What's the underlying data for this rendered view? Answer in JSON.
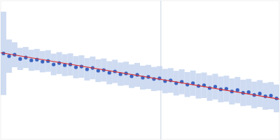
{
  "chart_data": {
    "type": "scatter",
    "xlim": [
      0,
      1
    ],
    "ylim": [
      0,
      1
    ],
    "tick_labels": false,
    "grid": false,
    "vline": 0.575,
    "series": [
      {
        "type": "scatter",
        "color": "#3a64c0",
        "marker": "circle",
        "x": [
          0.01,
          0.03,
          0.05,
          0.07,
          0.09,
          0.11,
          0.13,
          0.15,
          0.17,
          0.19,
          0.21,
          0.23,
          0.25,
          0.27,
          0.29,
          0.31,
          0.33,
          0.35,
          0.37,
          0.39,
          0.41,
          0.43,
          0.45,
          0.47,
          0.49,
          0.51,
          0.53,
          0.55,
          0.57,
          0.59,
          0.61,
          0.63,
          0.65,
          0.67,
          0.69,
          0.71,
          0.73,
          0.75,
          0.77,
          0.79,
          0.81,
          0.83,
          0.85,
          0.87,
          0.89,
          0.91,
          0.93,
          0.95,
          0.97,
          0.99
        ],
        "values": [
          0.62,
          0.6,
          0.61,
          0.58,
          0.59,
          0.57,
          0.575,
          0.56,
          0.565,
          0.54,
          0.55,
          0.535,
          0.54,
          0.52,
          0.525,
          0.505,
          0.515,
          0.495,
          0.5,
          0.48,
          0.49,
          0.47,
          0.475,
          0.455,
          0.465,
          0.445,
          0.45,
          0.435,
          0.44,
          0.42,
          0.425,
          0.405,
          0.415,
          0.395,
          0.405,
          0.385,
          0.39,
          0.37,
          0.38,
          0.36,
          0.365,
          0.345,
          0.355,
          0.335,
          0.34,
          0.32,
          0.33,
          0.31,
          0.315,
          0.295
        ],
        "errors": [
          0.3,
          0.12,
          0.09,
          0.08,
          0.076,
          0.076,
          0.077,
          0.077,
          0.078,
          0.078,
          0.079,
          0.079,
          0.08,
          0.08,
          0.081,
          0.081,
          0.082,
          0.082,
          0.083,
          0.083,
          0.084,
          0.084,
          0.085,
          0.085,
          0.086,
          0.086,
          0.087,
          0.087,
          0.088,
          0.088,
          0.089,
          0.089,
          0.09,
          0.09,
          0.091,
          0.091,
          0.092,
          0.092,
          0.093,
          0.093,
          0.094,
          0.094,
          0.095,
          0.095,
          0.096,
          0.096,
          0.097,
          0.097,
          0.098,
          0.1
        ]
      },
      {
        "type": "line",
        "color": "#e03030",
        "line_style": "solid",
        "x": [
          0,
          1
        ],
        "values": [
          0.625,
          0.29
        ]
      }
    ]
  }
}
